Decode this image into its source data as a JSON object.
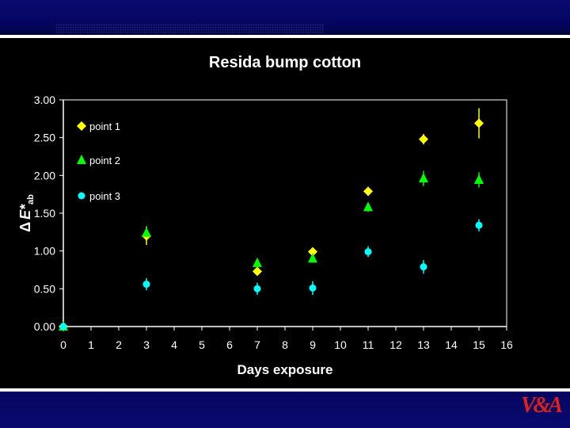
{
  "logo_text": "V&A",
  "chart_data": {
    "type": "scatter",
    "title": "Resida bump cotton",
    "xlabel": "Days exposure",
    "ylabel_prefix": "Δ",
    "ylabel_main": "E*",
    "ylabel_sub": "ab",
    "xlim": [
      0,
      16
    ],
    "ylim": [
      0,
      3
    ],
    "xticks": [
      0,
      1,
      2,
      3,
      4,
      5,
      6,
      7,
      8,
      9,
      10,
      11,
      12,
      13,
      14,
      15,
      16
    ],
    "yticks": [
      "0.00",
      "0.50",
      "1.00",
      "1.50",
      "2.00",
      "2.50",
      "3.00"
    ],
    "grid": false,
    "legend_position": "top-left",
    "series": [
      {
        "name": "point 1",
        "marker": "diamond",
        "color": "#ffff00",
        "points": [
          [
            0,
            0
          ],
          [
            3,
            1.2
          ],
          [
            7,
            0.73
          ],
          [
            9,
            0.99
          ],
          [
            11,
            1.79
          ],
          [
            13,
            2.48
          ],
          [
            15,
            2.69
          ]
        ],
        "errors": [
          0,
          0.12,
          0.05,
          0.04,
          0.06,
          0.07,
          0.2
        ]
      },
      {
        "name": "point 2",
        "marker": "triangle",
        "color": "#00ff00",
        "points": [
          [
            0,
            0
          ],
          [
            3,
            1.24
          ],
          [
            7,
            0.84
          ],
          [
            9,
            0.9
          ],
          [
            11,
            1.58
          ],
          [
            13,
            1.96
          ],
          [
            15,
            1.94
          ]
        ],
        "errors": [
          0,
          0.09,
          0.06,
          0.05,
          0.06,
          0.1,
          0.1
        ]
      },
      {
        "name": "point 3",
        "marker": "circle",
        "color": "#00ffff",
        "points": [
          [
            0,
            0
          ],
          [
            3,
            0.56
          ],
          [
            7,
            0.5
          ],
          [
            9,
            0.51
          ],
          [
            11,
            0.99
          ],
          [
            13,
            0.79
          ],
          [
            15,
            1.34
          ]
        ],
        "errors": [
          0,
          0.08,
          0.08,
          0.09,
          0.07,
          0.09,
          0.08
        ]
      }
    ]
  }
}
